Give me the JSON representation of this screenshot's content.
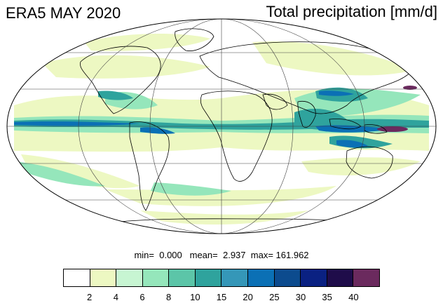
{
  "title_left": "ERA5 MAY 2020",
  "title_right": "Total precipitation [mm/d]",
  "stats": {
    "min_label": "min=",
    "min_value": "0.000",
    "mean_label": "mean=",
    "mean_value": "2.937",
    "max_label": "max=",
    "max_value": "161.962"
  },
  "colorbar": {
    "colors": [
      "#ffffff",
      "#edf8c2",
      "#c7f5d2",
      "#95e6bb",
      "#5cc5a8",
      "#2fa39d",
      "#3597b8",
      "#0b70b5",
      "#0c4b8e",
      "#0a2182",
      "#1f0c4a",
      "#6b2a5e"
    ],
    "labels": [
      "2",
      "4",
      "6",
      "8",
      "10",
      "15",
      "20",
      "25",
      "30",
      "35",
      "40"
    ]
  },
  "map": {
    "projection": "mollweide",
    "ocean_color": "#ffffff",
    "coastline_color": "#000000",
    "grid_color": "#404040"
  }
}
